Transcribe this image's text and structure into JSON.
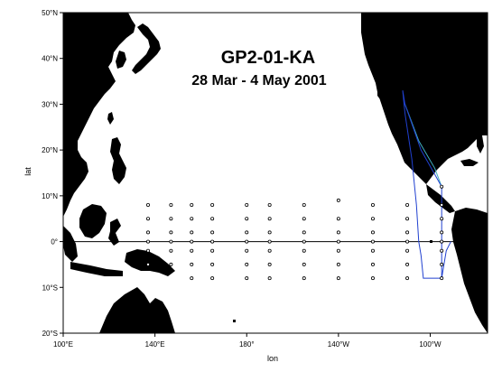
{
  "map": {
    "title": "GP2-01-KA",
    "subtitle": "28 Mar - 4 May 2001",
    "xlabel": "lon",
    "ylabel": "lat",
    "lon_range": [
      100,
      285
    ],
    "lat_range": [
      -20,
      50
    ],
    "x_ticks": [
      {
        "lon": 100,
        "label": "100°E"
      },
      {
        "lon": 140,
        "label": "140°E"
      },
      {
        "lon": 180,
        "label": "180°"
      },
      {
        "lon": 220,
        "label": "140°W"
      },
      {
        "lon": 260,
        "label": "100°W"
      }
    ],
    "y_ticks": [
      {
        "lat": 50,
        "label": "50°N"
      },
      {
        "lat": 40,
        "label": "40°N"
      },
      {
        "lat": 30,
        "label": "30°N"
      },
      {
        "lat": 20,
        "label": "20°N"
      },
      {
        "lat": 10,
        "label": "10°N"
      },
      {
        "lat": 0,
        "label": "0°"
      },
      {
        "lat": -10,
        "label": "10°S"
      },
      {
        "lat": -20,
        "label": "20°S"
      }
    ],
    "colors": {
      "land": "#000000",
      "ocean": "#ffffff",
      "track": "#2040d0",
      "track_secondary": "#40b0c0",
      "station": "#000000"
    },
    "buoy_array": {
      "columns": [
        {
          "lon": 137,
          "lats": [
            8,
            5,
            2,
            0,
            -2,
            -5
          ]
        },
        {
          "lon": 147,
          "lats": [
            8,
            5,
            2,
            0,
            -2,
            -5
          ]
        },
        {
          "lon": 156,
          "lats": [
            8,
            5,
            2,
            0,
            -2,
            -5,
            -8
          ]
        },
        {
          "lon": 165,
          "lats": [
            8,
            5,
            2,
            0,
            -2,
            -5,
            -8
          ]
        },
        {
          "lon": 180,
          "lats": [
            8,
            5,
            2,
            0,
            -2,
            -5,
            -8
          ]
        },
        {
          "lon": 190,
          "lats": [
            8,
            5,
            2,
            0,
            -2,
            -5,
            -8
          ]
        },
        {
          "lon": 205,
          "lats": [
            8,
            5,
            2,
            0,
            -2,
            -5,
            -8
          ]
        },
        {
          "lon": 220,
          "lats": [
            9,
            5,
            2,
            0,
            -2,
            -5,
            -8
          ]
        },
        {
          "lon": 235,
          "lats": [
            8,
            5,
            2,
            0,
            -2,
            -5,
            -8
          ]
        },
        {
          "lon": 250,
          "lats": [
            8,
            5,
            2,
            0,
            -2,
            -5,
            -8
          ]
        },
        {
          "lon": 265,
          "lats": [
            12,
            8,
            5,
            2,
            0,
            -2,
            -5,
            -8
          ]
        }
      ]
    },
    "cruise_track": [
      [
        248,
        33
      ],
      [
        249,
        28
      ],
      [
        252,
        18
      ],
      [
        254,
        8
      ],
      [
        255,
        0
      ],
      [
        256,
        -3
      ],
      [
        257,
        -8
      ],
      [
        265,
        -8
      ],
      [
        265,
        0
      ],
      [
        265,
        12
      ],
      [
        256,
        20
      ],
      [
        249,
        30
      ],
      [
        248,
        33
      ]
    ],
    "cruise_track_secondary": [
      [
        249,
        30
      ],
      [
        255,
        22
      ],
      [
        262,
        16
      ],
      [
        265,
        12
      ]
    ],
    "track_tail": [
      [
        265,
        -8
      ],
      [
        267,
        -2
      ],
      [
        269,
        0
      ]
    ]
  }
}
